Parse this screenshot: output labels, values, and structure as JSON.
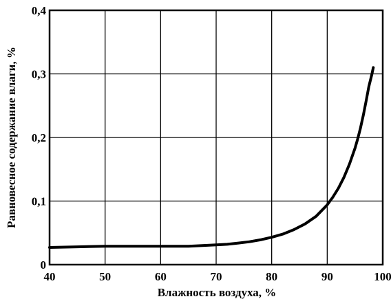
{
  "chart_data": {
    "type": "line",
    "title": "",
    "xlabel": "Влажность воздуха, %",
    "ylabel": "Равновесное содержание влаги, %",
    "xlim": [
      40,
      100
    ],
    "ylim": [
      0,
      0.4
    ],
    "grid": true,
    "x_ticks": [
      40,
      50,
      60,
      70,
      80,
      90,
      100
    ],
    "x_tick_labels": [
      "40",
      "50",
      "60",
      "70",
      "80",
      "90",
      "100"
    ],
    "y_ticks": [
      0,
      0.1,
      0.2,
      0.3,
      0.4
    ],
    "y_tick_labels": [
      "0",
      "0,1",
      "0,2",
      "0,3",
      "0,4"
    ],
    "series": [
      {
        "x": [
          40,
          45,
          50,
          55,
          60,
          65,
          70,
          72,
          74,
          76,
          78,
          80,
          82,
          84,
          86,
          88,
          90,
          91,
          92,
          93,
          94,
          95,
          95.5,
          96,
          96.5,
          97,
          97.5,
          98,
          98.3
        ],
        "y": [
          0.027,
          0.028,
          0.029,
          0.029,
          0.029,
          0.029,
          0.031,
          0.032,
          0.034,
          0.036,
          0.039,
          0.043,
          0.048,
          0.055,
          0.064,
          0.076,
          0.094,
          0.106,
          0.12,
          0.137,
          0.158,
          0.183,
          0.198,
          0.215,
          0.235,
          0.257,
          0.28,
          0.298,
          0.31
        ]
      }
    ],
    "legend": "none"
  }
}
